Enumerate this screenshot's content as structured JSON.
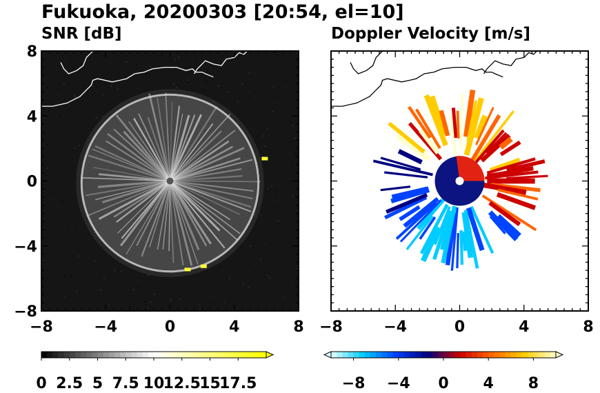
{
  "title": "Fukuoka, 20200303 [20:54, el=10]",
  "chart_data": [
    {
      "type": "heatmap",
      "title": "SNR [dB]",
      "xlim": [
        -8,
        8
      ],
      "ylim": [
        -8,
        8
      ],
      "xticks": [
        -8,
        -4,
        0,
        4,
        8
      ],
      "yticks": [
        -8,
        -4,
        0,
        4,
        8
      ],
      "radar_center": [
        0,
        0
      ],
      "echo_radius_approx": 5.5,
      "colorbar": {
        "ticks": [
          "0",
          "2.5",
          "5",
          "7.5",
          "10",
          "12.5",
          "15",
          "17.5"
        ],
        "range": [
          0,
          20
        ],
        "colors": [
          "#000000",
          "#ffffff",
          "#ffff00"
        ],
        "extend": "max"
      }
    },
    {
      "type": "heatmap",
      "title": "Doppler Velocity [m/s]",
      "xlim": [
        -8,
        8
      ],
      "ylim": [
        -8,
        8
      ],
      "xticks": [
        -8,
        -4,
        0,
        4,
        8
      ],
      "yticks": [
        -8,
        -4,
        0,
        4,
        8
      ],
      "radar_center": [
        0,
        0
      ],
      "colorbar": {
        "ticks": [
          "−8",
          "−4",
          "0",
          "4",
          "8"
        ],
        "range": [
          -10,
          10
        ],
        "colors": [
          "#e6ffff",
          "#00ccff",
          "#0044ff",
          "#000080",
          "#cc0000",
          "#ff6600",
          "#ffcc00",
          "#ffffcc"
        ],
        "extend": "both"
      }
    }
  ]
}
